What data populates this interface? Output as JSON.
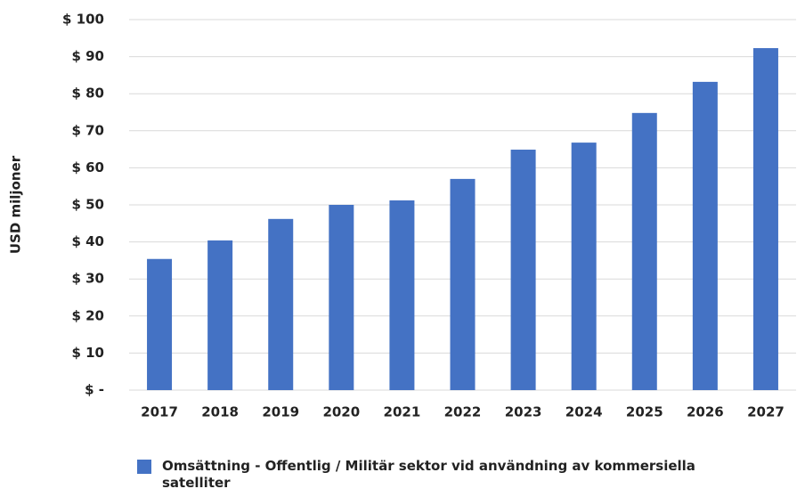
{
  "chart_data": {
    "type": "bar",
    "y_label": "USD miljoner",
    "categories": [
      "2017",
      "2018",
      "2019",
      "2020",
      "2021",
      "2022",
      "2023",
      "2024",
      "2025",
      "2026",
      "2027"
    ],
    "series": [
      {
        "name": "Omsättning - Offentlig / Militär sektor vid användning av kommersiella satelliter",
        "color": "#4472c4",
        "values": [
          35.4,
          40.4,
          46.2,
          50,
          51.2,
          57,
          64.9,
          66.8,
          74.8,
          83.2,
          92.3
        ]
      }
    ],
    "ylim": [
      0,
      100
    ],
    "yticks": [
      {
        "value": 0,
        "label": "$ -"
      },
      {
        "value": 10,
        "label": "$ 10"
      },
      {
        "value": 20,
        "label": "$ 20"
      },
      {
        "value": 30,
        "label": "$ 30"
      },
      {
        "value": 40,
        "label": "$ 40"
      },
      {
        "value": 50,
        "label": "$ 50"
      },
      {
        "value": 60,
        "label": "$ 60"
      },
      {
        "value": 70,
        "label": "$ 70"
      },
      {
        "value": 80,
        "label": "$ 80"
      },
      {
        "value": 90,
        "label": "$ 90"
      },
      {
        "value": 100,
        "label": "$ 100"
      }
    ],
    "grid": true,
    "legend": "bottom"
  }
}
